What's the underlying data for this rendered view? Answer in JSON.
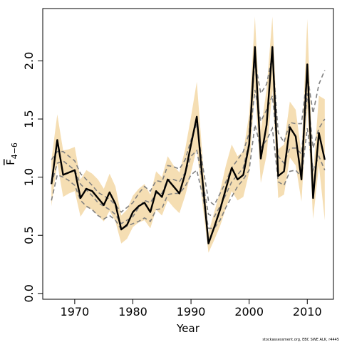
{
  "chart_data": {
    "type": "line",
    "xlabel": "Year",
    "ylabel": "F",
    "ylabel_subscript": "4−6",
    "xlim": [
      1964.5,
      2014.5
    ],
    "ylim": [
      -0.05,
      2.45
    ],
    "x_ticks": [
      1970,
      1980,
      1990,
      2000,
      2010
    ],
    "y_ticks": [
      0.0,
      0.5,
      1.0,
      1.5,
      2.0
    ],
    "x_tick_labels": [
      "1970",
      "1980",
      "1990",
      "2000",
      "2010"
    ],
    "y_tick_labels": [
      "0.0",
      "0.5",
      "1.0",
      "1.5",
      "2.0"
    ],
    "grid": false,
    "credit": "stockassessment.org, EBC SWE ALK, r4445",
    "colors": {
      "band": "#f5deb3",
      "estimate": "#000000",
      "dashed": "#808080"
    },
    "x": [
      1966,
      1967,
      1968,
      1969,
      1970,
      1971,
      1972,
      1973,
      1974,
      1975,
      1976,
      1977,
      1978,
      1979,
      1980,
      1981,
      1982,
      1983,
      1984,
      1985,
      1986,
      1987,
      1988,
      1989,
      1990,
      1991,
      1992,
      1993,
      1994,
      1995,
      1996,
      1997,
      1998,
      1999,
      2000,
      2001,
      2002,
      2003,
      2004,
      2005,
      2006,
      2007,
      2008,
      2009,
      2010,
      2011,
      2012,
      2013
    ],
    "series": [
      {
        "name": "estimate",
        "style": "solid",
        "values": [
          0.94,
          1.32,
          1.02,
          1.04,
          1.06,
          0.82,
          0.9,
          0.88,
          0.82,
          0.76,
          0.87,
          0.77,
          0.55,
          0.59,
          0.7,
          0.75,
          0.78,
          0.7,
          0.88,
          0.83,
          0.98,
          0.92,
          0.86,
          1.03,
          1.28,
          1.52,
          0.96,
          0.43,
          0.57,
          0.72,
          0.9,
          1.08,
          0.98,
          1.02,
          1.28,
          2.12,
          1.16,
          1.45,
          2.12,
          1.01,
          1.05,
          1.43,
          1.35,
          0.98,
          1.97,
          0.82,
          1.38,
          1.15
        ]
      },
      {
        "name": "lower",
        "style": "band",
        "values": [
          0.75,
          1.12,
          0.83,
          0.86,
          0.88,
          0.66,
          0.74,
          0.72,
          0.67,
          0.62,
          0.71,
          0.62,
          0.43,
          0.47,
          0.57,
          0.61,
          0.63,
          0.56,
          0.72,
          0.67,
          0.8,
          0.74,
          0.69,
          0.84,
          1.04,
          1.25,
          0.76,
          0.35,
          0.46,
          0.58,
          0.73,
          0.88,
          0.8,
          0.83,
          1.04,
          1.78,
          0.95,
          1.19,
          1.75,
          0.82,
          0.85,
          1.17,
          1.1,
          0.79,
          1.6,
          0.64,
          1.1,
          0.63
        ]
      },
      {
        "name": "upper",
        "style": "band",
        "values": [
          1.15,
          1.54,
          1.23,
          1.24,
          1.26,
          0.98,
          1.06,
          1.03,
          0.98,
          0.9,
          1.03,
          0.92,
          0.67,
          0.72,
          0.84,
          0.9,
          0.94,
          0.85,
          1.05,
          1.0,
          1.18,
          1.1,
          1.04,
          1.24,
          1.52,
          1.82,
          1.16,
          0.52,
          0.7,
          0.88,
          1.1,
          1.28,
          1.18,
          1.22,
          1.54,
          2.38,
          1.4,
          1.76,
          2.38,
          1.24,
          1.28,
          1.65,
          1.58,
          1.2,
          2.36,
          1.02,
          1.7,
          1.67
        ]
      },
      {
        "name": "dashed-upper",
        "style": "dashed",
        "values": [
          1.15,
          1.22,
          1.22,
          1.18,
          1.14,
          1.03,
          0.98,
          0.93,
          0.87,
          0.84,
          0.81,
          0.76,
          0.7,
          0.74,
          0.78,
          0.86,
          0.92,
          0.88,
          0.97,
          0.96,
          1.1,
          1.09,
          1.07,
          1.15,
          1.32,
          1.46,
          1.1,
          0.8,
          0.76,
          0.86,
          0.96,
          1.08,
          1.15,
          1.22,
          1.38,
          2.0,
          1.72,
          1.8,
          2.05,
          1.38,
          1.3,
          1.47,
          1.46,
          1.46,
          1.88,
          1.55,
          1.8,
          1.92
        ]
      },
      {
        "name": "dashed-middle",
        "style": "dashed",
        "values": [
          0.94,
          1.12,
          1.14,
          1.1,
          1.06,
          0.94,
          0.89,
          0.84,
          0.78,
          0.75,
          0.72,
          0.68,
          0.6,
          0.63,
          0.66,
          0.74,
          0.8,
          0.78,
          0.86,
          0.86,
          0.98,
          0.98,
          0.96,
          1.04,
          1.18,
          1.23,
          0.96,
          0.68,
          0.66,
          0.75,
          0.85,
          0.96,
          1.02,
          1.08,
          1.3,
          1.75,
          1.48,
          1.58,
          1.7,
          1.18,
          1.12,
          1.25,
          1.25,
          1.2,
          1.72,
          1.25,
          1.42,
          1.5
        ]
      },
      {
        "name": "dashed-lower",
        "style": "dashed",
        "values": [
          0.8,
          1.02,
          1.0,
          0.97,
          0.93,
          0.8,
          0.75,
          0.72,
          0.67,
          0.64,
          0.67,
          0.63,
          0.55,
          0.58,
          0.6,
          0.62,
          0.65,
          0.62,
          0.72,
          0.73,
          0.85,
          0.86,
          0.86,
          0.92,
          1.02,
          1.06,
          0.84,
          0.56,
          0.56,
          0.63,
          0.74,
          0.83,
          0.92,
          0.98,
          1.06,
          1.45,
          1.25,
          1.32,
          1.42,
          0.96,
          0.93,
          1.05,
          1.06,
          1.0,
          1.42,
          1.06,
          1.18,
          1.06
        ]
      }
    ]
  }
}
